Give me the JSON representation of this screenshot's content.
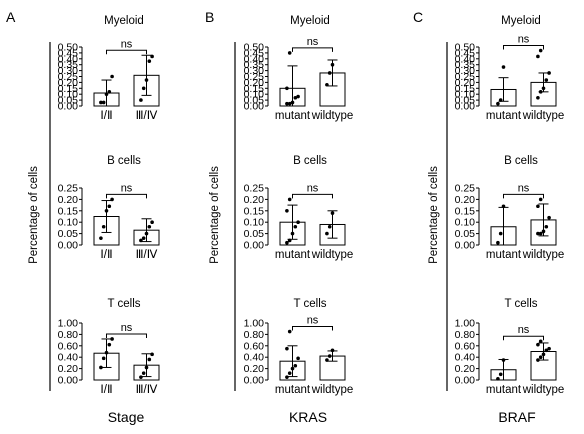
{
  "panel_labels": [
    "A",
    "B",
    "C"
  ],
  "chart_data": [
    {
      "type": "bar",
      "panel": "A",
      "title": "Myeloid",
      "categories": [
        "Ⅰ/Ⅱ",
        "Ⅲ/Ⅳ"
      ],
      "values": [
        0.11,
        0.26
      ],
      "errors": [
        0.11,
        0.17
      ],
      "points": [
        [
          0.03,
          0.03,
          0.1,
          0.12,
          0.25
        ],
        [
          0.05,
          0.15,
          0.22,
          0.38,
          0.42
        ]
      ],
      "ylim": [
        0,
        0.5
      ],
      "yticks": [
        "0.00",
        "0.05",
        "0.10",
        "0.15",
        "0.20",
        "0.25",
        "0.30",
        "0.35",
        "0.40",
        "0.45",
        "0.50"
      ],
      "significance": "ns"
    },
    {
      "type": "bar",
      "panel": "A",
      "title": "B cells",
      "categories": [
        "Ⅰ/Ⅱ",
        "Ⅲ/Ⅳ"
      ],
      "values": [
        0.125,
        0.065
      ],
      "errors": [
        0.07,
        0.05
      ],
      "points": [
        [
          0.03,
          0.08,
          0.15,
          0.17,
          0.2
        ],
        [
          0.02,
          0.03,
          0.05,
          0.08,
          0.1
        ]
      ],
      "ylim": [
        0,
        0.25
      ],
      "yticks": [
        "0.00",
        "0.05",
        "0.10",
        "0.15",
        "0.20",
        "0.25"
      ],
      "significance": "ns"
    },
    {
      "type": "bar",
      "panel": "A",
      "title": "T cells",
      "categories": [
        "Ⅰ/Ⅱ",
        "Ⅲ/Ⅳ"
      ],
      "values": [
        0.47,
        0.26
      ],
      "errors": [
        0.25,
        0.2
      ],
      "points": [
        [
          0.22,
          0.38,
          0.48,
          0.62,
          0.72
        ],
        [
          0.05,
          0.12,
          0.22,
          0.36,
          0.45
        ]
      ],
      "ylim": [
        0,
        1.0
      ],
      "yticks": [
        "0.00",
        "0.20",
        "0.40",
        "0.60",
        "0.80",
        "1.00"
      ],
      "significance": "ns"
    },
    {
      "type": "bar",
      "panel": "B",
      "title": "Myeloid",
      "categories": [
        "mutant",
        "wildtype"
      ],
      "values": [
        0.15,
        0.28
      ],
      "errors": [
        0.19,
        0.11
      ],
      "points": [
        [
          0.02,
          0.02,
          0.03,
          0.07,
          0.08,
          0.15,
          0.45
        ],
        [
          0.18,
          0.28,
          0.35
        ]
      ],
      "ylim": [
        0,
        0.5
      ],
      "yticks": [
        "0.00",
        "0.05",
        "0.10",
        "0.15",
        "0.20",
        "0.25",
        "0.30",
        "0.35",
        "0.40",
        "0.45",
        "0.50"
      ],
      "significance": "ns"
    },
    {
      "type": "bar",
      "panel": "B",
      "title": "B cells",
      "categories": [
        "mutant",
        "wildtype"
      ],
      "values": [
        0.1,
        0.09
      ],
      "errors": [
        0.075,
        0.06
      ],
      "points": [
        [
          0.01,
          0.02,
          0.05,
          0.08,
          0.1,
          0.15,
          0.2
        ],
        [
          0.05,
          0.08,
          0.14
        ]
      ],
      "ylim": [
        0,
        0.25
      ],
      "yticks": [
        "0.00",
        "0.05",
        "0.10",
        "0.15",
        "0.20",
        "0.25"
      ],
      "significance": "ns"
    },
    {
      "type": "bar",
      "panel": "B",
      "title": "T cells",
      "categories": [
        "mutant",
        "wildtype"
      ],
      "values": [
        0.33,
        0.42
      ],
      "errors": [
        0.27,
        0.09
      ],
      "points": [
        [
          0.05,
          0.12,
          0.2,
          0.25,
          0.38,
          0.55,
          0.85
        ],
        [
          0.35,
          0.42,
          0.52
        ]
      ],
      "ylim": [
        0,
        1.0
      ],
      "yticks": [
        "0.00",
        "0.20",
        "0.40",
        "0.60",
        "0.80",
        "1.00"
      ],
      "significance": "ns"
    },
    {
      "type": "bar",
      "panel": "C",
      "title": "Myeloid",
      "categories": [
        "mutant",
        "wildtype"
      ],
      "values": [
        0.14,
        0.2
      ],
      "errors": [
        0.1,
        0.08
      ],
      "points": [
        [
          0.02,
          0.05,
          0.33
        ],
        [
          0.07,
          0.12,
          0.15,
          0.22,
          0.28,
          0.42,
          0.47
        ]
      ],
      "ylim": [
        0,
        0.5
      ],
      "yticks": [
        "0.00",
        "0.05",
        "0.10",
        "0.15",
        "0.20",
        "0.25",
        "0.30",
        "0.35",
        "0.40",
        "0.45",
        "0.50"
      ],
      "significance": "ns"
    },
    {
      "type": "bar",
      "panel": "C",
      "title": "B cells",
      "categories": [
        "mutant",
        "wildtype"
      ],
      "values": [
        0.08,
        0.11
      ],
      "errors": [
        0.085,
        0.07
      ],
      "points": [
        [
          0.01,
          0.05,
          0.17
        ],
        [
          0.05,
          0.05,
          0.06,
          0.08,
          0.12,
          0.17,
          0.2
        ]
      ],
      "ylim": [
        0,
        0.25
      ],
      "yticks": [
        "0.00",
        "0.05",
        "0.10",
        "0.15",
        "0.20",
        "0.25"
      ],
      "significance": "ns"
    },
    {
      "type": "bar",
      "panel": "C",
      "title": "T cells",
      "categories": [
        "mutant",
        "wildtype"
      ],
      "values": [
        0.18,
        0.5
      ],
      "errors": [
        0.18,
        0.15
      ],
      "points": [
        [
          0.02,
          0.1,
          0.35
        ],
        [
          0.35,
          0.4,
          0.45,
          0.52,
          0.55,
          0.62,
          0.68
        ]
      ],
      "ylim": [
        0,
        1.0
      ],
      "yticks": [
        "0.00",
        "0.20",
        "0.40",
        "0.60",
        "0.80",
        "1.00"
      ],
      "significance": "ns"
    }
  ],
  "ylabels": [
    "Percentage of cells",
    "Percentage of cells",
    "Percentage of cells"
  ],
  "xlabels": [
    "Stage",
    "KRAS",
    "BRAF"
  ]
}
